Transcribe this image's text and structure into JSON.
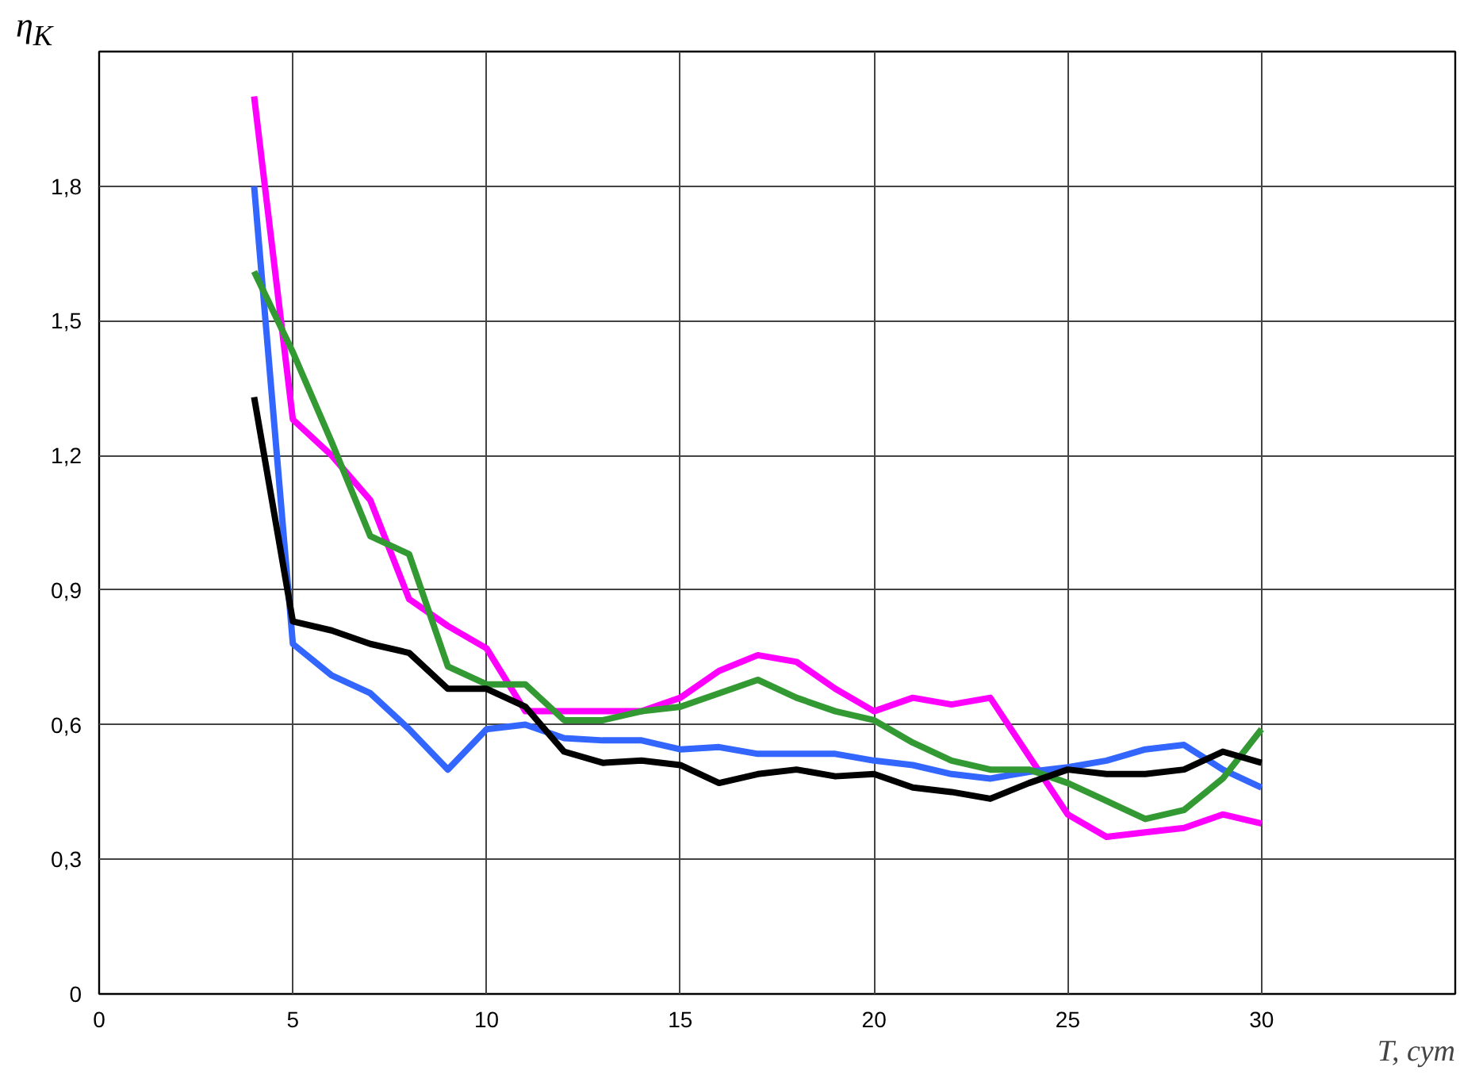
{
  "chart_data": {
    "type": "line",
    "xlabel": "T, сут",
    "ylabel": "η$_{K}$",
    "x": [
      4,
      5,
      6,
      7,
      8,
      9,
      10,
      11,
      12,
      13,
      14,
      15,
      16,
      17,
      18,
      19,
      20,
      21,
      22,
      23,
      24,
      25,
      26,
      27,
      28,
      29,
      30
    ],
    "series": [
      {
        "color": "#ff00ff",
        "values": [
          2.0,
          1.28,
          1.2,
          1.1,
          0.88,
          0.82,
          0.77,
          0.63,
          0.63,
          0.63,
          0.63,
          0.66,
          0.72,
          0.755,
          0.74,
          0.68,
          0.63,
          0.66,
          0.645,
          0.66,
          0.53,
          0.4,
          0.35,
          0.36,
          0.37,
          0.4,
          0.38
        ]
      },
      {
        "color": "#3366ff",
        "values": [
          1.8,
          0.78,
          0.71,
          0.67,
          0.59,
          0.5,
          0.59,
          0.6,
          0.57,
          0.565,
          0.565,
          0.545,
          0.55,
          0.535,
          0.535,
          0.535,
          0.52,
          0.51,
          0.49,
          0.48,
          0.495,
          0.505,
          0.52,
          0.545,
          0.555,
          0.5,
          0.46
        ]
      },
      {
        "color": "#339933",
        "values": [
          1.61,
          1.43,
          1.23,
          1.02,
          0.98,
          0.73,
          0.69,
          0.69,
          0.61,
          0.61,
          0.63,
          0.64,
          0.67,
          0.7,
          0.66,
          0.63,
          0.61,
          0.56,
          0.52,
          0.5,
          0.5,
          0.47,
          0.43,
          0.39,
          0.41,
          0.48,
          0.59
        ]
      },
      {
        "color": "#000000",
        "values": [
          1.33,
          0.83,
          0.81,
          0.78,
          0.76,
          0.68,
          0.68,
          0.64,
          0.54,
          0.515,
          0.52,
          0.51,
          0.47,
          0.49,
          0.5,
          0.485,
          0.49,
          0.46,
          0.45,
          0.435,
          0.47,
          0.5,
          0.49,
          0.49,
          0.5,
          0.54,
          0.515
        ]
      }
    ],
    "xlim": [
      0,
      35
    ],
    "xticks": [
      0,
      5,
      10,
      15,
      20,
      25,
      30,
      {
        "value": 35,
        "label": null
      }
    ],
    "ylim": [
      0,
      2.1
    ],
    "yticks": [
      0,
      {
        "value": 0.3,
        "label": "0,3"
      },
      {
        "value": 0.6,
        "label": "0,6"
      },
      {
        "value": 0.9,
        "label": "0,9"
      },
      {
        "value": 1.2,
        "label": "1,2"
      },
      {
        "value": 1.5,
        "label": "1,5"
      },
      {
        "value": 1.8,
        "label": "1,8"
      },
      {
        "value": 2.1,
        "label": null
      }
    ],
    "grid": true,
    "line_style": "solid",
    "marker": "none"
  }
}
